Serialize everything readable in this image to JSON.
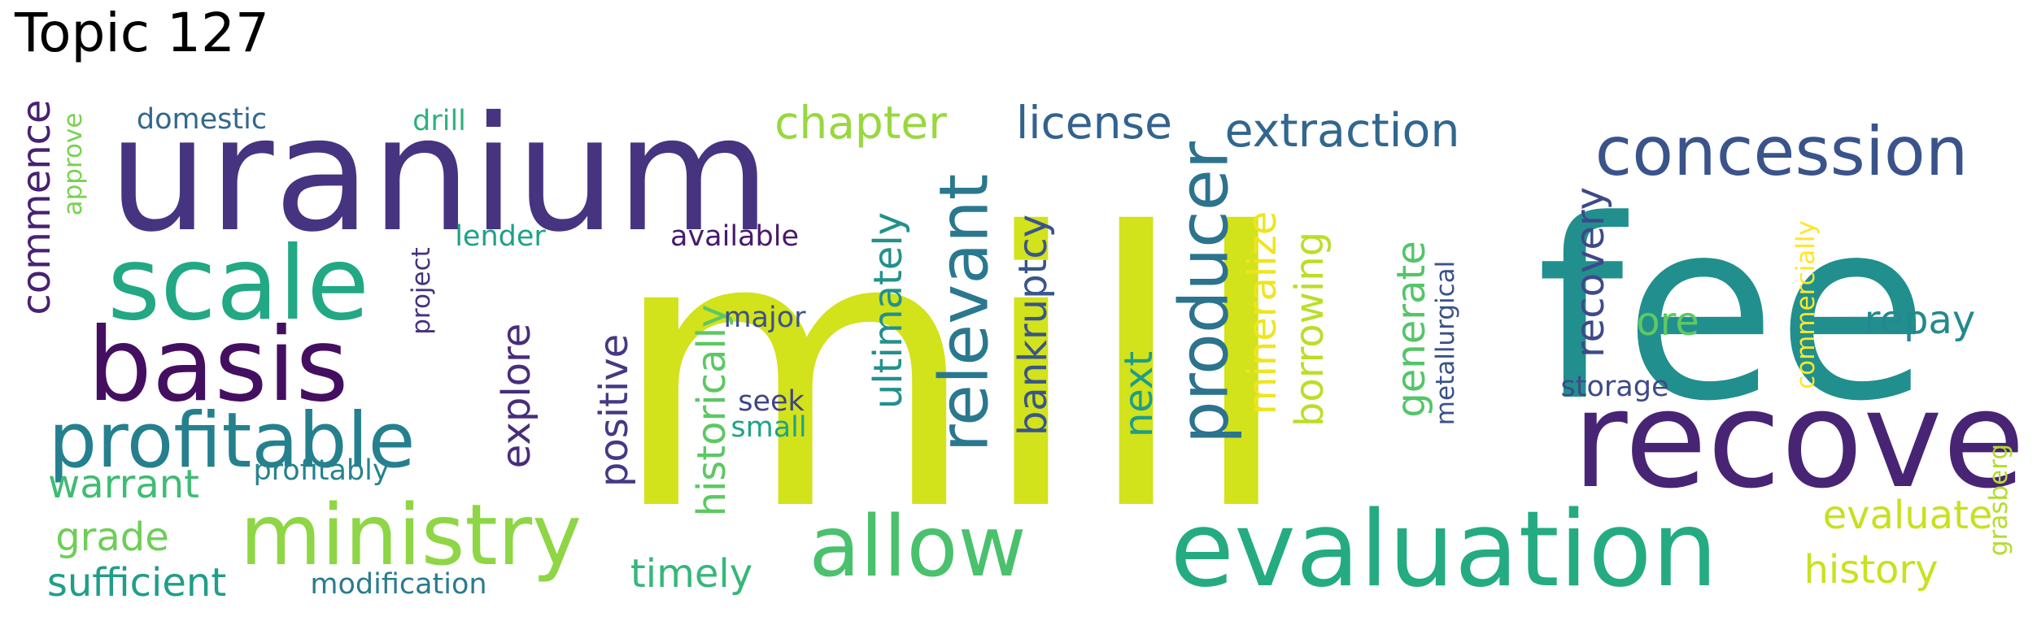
{
  "title": "Topic 127",
  "words": [
    {
      "text": "mill",
      "color": "#d2e21b",
      "vertical": false
    },
    {
      "text": "fee",
      "color": "#218f8d",
      "vertical": false
    },
    {
      "text": "uranium",
      "color": "#463480",
      "vertical": false
    },
    {
      "text": "recover",
      "color": "#482475",
      "vertical": false
    },
    {
      "text": "evaluation",
      "color": "#25ab82",
      "vertical": false
    },
    {
      "text": "scale",
      "color": "#22a884",
      "vertical": false
    },
    {
      "text": "basis",
      "color": "#440f60",
      "vertical": false
    },
    {
      "text": "ministry",
      "color": "#8ed645",
      "vertical": false
    },
    {
      "text": "profitable",
      "color": "#25808e",
      "vertical": false
    },
    {
      "text": "allow",
      "color": "#4ac16d",
      "vertical": false
    },
    {
      "text": "concession",
      "color": "#3a538b",
      "vertical": false
    },
    {
      "text": "relevant",
      "color": "#2a788e",
      "vertical": true
    },
    {
      "text": "producer",
      "color": "#2c738e",
      "vertical": true
    },
    {
      "text": "extraction",
      "color": "#31678e",
      "vertical": false
    },
    {
      "text": "license",
      "color": "#33628d",
      "vertical": false
    },
    {
      "text": "chapter",
      "color": "#98d83e",
      "vertical": false
    },
    {
      "text": "bankruptcy",
      "color": "#39558c",
      "vertical": true
    },
    {
      "text": "ultimately",
      "color": "#21918c",
      "vertical": true
    },
    {
      "text": "historically",
      "color": "#5cc863",
      "vertical": true
    },
    {
      "text": "positive",
      "color": "#443983",
      "vertical": true
    },
    {
      "text": "explore",
      "color": "#472d7b",
      "vertical": true
    },
    {
      "text": "mineralize",
      "color": "#efe51c",
      "vertical": true
    },
    {
      "text": "borrowing",
      "color": "#bade28",
      "vertical": true
    },
    {
      "text": "next",
      "color": "#1e9d89",
      "vertical": true
    },
    {
      "text": "generate",
      "color": "#54c568",
      "vertical": true
    },
    {
      "text": "metallurgical",
      "color": "#3b518b",
      "vertical": true
    },
    {
      "text": "recovery",
      "color": "#3e4989",
      "vertical": true
    },
    {
      "text": "ore",
      "color": "#5ec962",
      "vertical": false
    },
    {
      "text": "repay",
      "color": "#23898e",
      "vertical": false
    },
    {
      "text": "storage",
      "color": "#3e4a89",
      "vertical": false
    },
    {
      "text": "commercially",
      "color": "#fde725",
      "vertical": true
    },
    {
      "text": "evaluate",
      "color": "#c8e020",
      "vertical": false
    },
    {
      "text": "history",
      "color": "#cae11f",
      "vertical": false
    },
    {
      "text": "grasberg",
      "color": "#b2dd2d",
      "vertical": true
    },
    {
      "text": "commence",
      "color": "#482173",
      "vertical": true
    },
    {
      "text": "approve",
      "color": "#7ad151",
      "vertical": true
    },
    {
      "text": "domestic",
      "color": "#31688e",
      "vertical": false
    },
    {
      "text": "drill",
      "color": "#2db27d",
      "vertical": false
    },
    {
      "text": "lender",
      "color": "#1fa187",
      "vertical": false
    },
    {
      "text": "available",
      "color": "#481a6c",
      "vertical": false
    },
    {
      "text": "project",
      "color": "#46327e",
      "vertical": true
    },
    {
      "text": "major",
      "color": "#3b528b",
      "vertical": false
    },
    {
      "text": "seek",
      "color": "#414487",
      "vertical": false
    },
    {
      "text": "small",
      "color": "#20a386",
      "vertical": false
    },
    {
      "text": "warrant",
      "color": "#3fbc73",
      "vertical": false
    },
    {
      "text": "profitably",
      "color": "#26828e",
      "vertical": false
    },
    {
      "text": "grade",
      "color": "#6ece58",
      "vertical": false
    },
    {
      "text": "sufficient",
      "color": "#1f9e89",
      "vertical": false
    },
    {
      "text": "modification",
      "color": "#297b8e",
      "vertical": false
    },
    {
      "text": "timely",
      "color": "#35b779",
      "vertical": false
    }
  ]
}
